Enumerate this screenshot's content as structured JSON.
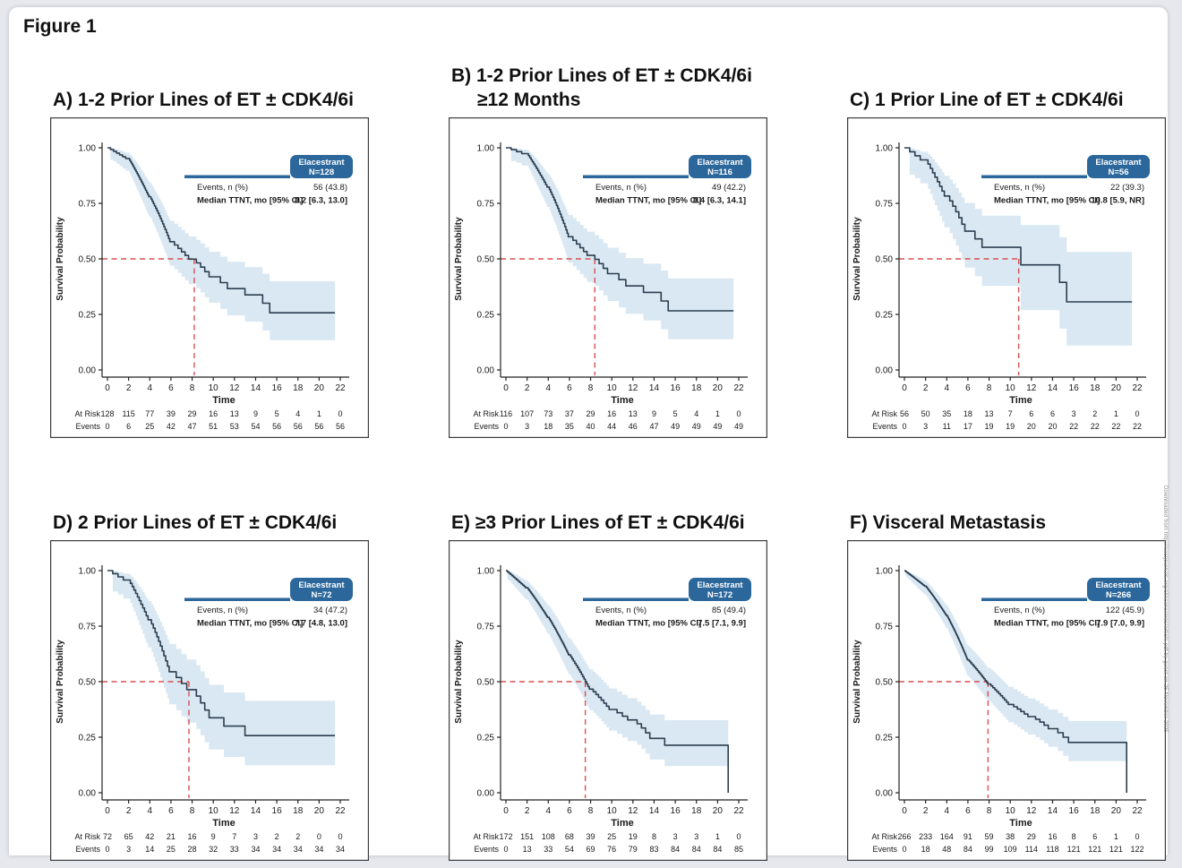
{
  "page": {
    "figure_label": "Figure 1",
    "side_note": "Downloaded from http://aacrjournals.org/clincancerres/article-pdf by guest on 25 November 2025"
  },
  "colors": {
    "legend_blue": "#2b679b",
    "curve": "#2c3e50",
    "band": "#d9e8f2",
    "median_red": "#d95050",
    "axis": "#222222",
    "text": "#1a1a1a"
  },
  "chart_data": {
    "type": "line",
    "subtype": "kaplan-meier-step",
    "title": "Figure 1",
    "xlabel": "Time",
    "ylabel": "Survival Probability",
    "x_ticks": [
      0,
      2,
      4,
      6,
      8,
      10,
      12,
      14,
      16,
      18,
      20,
      22
    ],
    "y_tick_labels": [
      "1.00",
      "0.75",
      "0.50",
      "0.25",
      "0.00"
    ],
    "y_ticks": [
      1.0,
      0.75,
      0.5,
      0.25,
      0.0
    ],
    "ylim": [
      0,
      1
    ],
    "xlim": [
      0,
      22
    ],
    "grid": false,
    "legend_position": "upper-right",
    "median_crosshair_probability": 0.5,
    "risk_table_row_labels": [
      "At Risk",
      "Events"
    ],
    "panels": [
      {
        "id": "A",
        "title": "A) 1-2 Prior Lines of ET ± CDK4/6i",
        "title_line2": "",
        "legend_title": "Elacestrant",
        "legend_n": "N=128",
        "events_label": "Events, n (%)",
        "events_value": "56 (43.8)",
        "median_label": "Median TTNT, mo [95% CI]",
        "median_value": "8.2 [6.3, 13.0]",
        "median_months": 8.2,
        "at_risk": [
          128,
          115,
          77,
          39,
          29,
          16,
          13,
          9,
          5,
          4,
          1,
          0
        ],
        "cumulative_events": [
          0,
          6,
          25,
          42,
          47,
          51,
          53,
          54,
          56,
          56,
          56,
          56
        ]
      },
      {
        "id": "B",
        "title": "B) 1-2 Prior Lines of ET ± CDK4/6i",
        "title_line2": "≥12 Months",
        "legend_title": "Elacestrant",
        "legend_n": "N=116",
        "events_label": "Events, n (%)",
        "events_value": "49 (42.2)",
        "median_label": "Median TTNT, mo [95% CI]",
        "median_value": "8.4 [6.3, 14.1]",
        "median_months": 8.4,
        "at_risk": [
          116,
          107,
          73,
          37,
          29,
          16,
          13,
          9,
          5,
          4,
          1,
          0
        ],
        "cumulative_events": [
          0,
          3,
          18,
          35,
          40,
          44,
          46,
          47,
          49,
          49,
          49,
          49
        ]
      },
      {
        "id": "C",
        "title": "C) 1 Prior Line of ET ± CDK4/6i",
        "title_line2": "",
        "legend_title": "Elacestrant",
        "legend_n": "N=56",
        "events_label": "Events, n (%)",
        "events_value": "22 (39.3)",
        "median_label": "Median TTNT, mo [95% CI]",
        "median_value": "10.8 [5.9, NR]",
        "median_months": 10.8,
        "at_risk": [
          56,
          50,
          35,
          18,
          13,
          7,
          6,
          6,
          3,
          2,
          1,
          0
        ],
        "cumulative_events": [
          0,
          3,
          11,
          17,
          19,
          19,
          20,
          20,
          22,
          22,
          22,
          22
        ]
      },
      {
        "id": "D",
        "title": "D) 2 Prior Lines of ET ± CDK4/6i",
        "title_line2": "",
        "legend_title": "Elacestrant",
        "legend_n": "N=72",
        "events_label": "Events, n (%)",
        "events_value": "34 (47.2)",
        "median_label": "Median TTNT, mo [95% CI]",
        "median_value": "7.7 [4.8, 13.0]",
        "median_months": 7.7,
        "at_risk": [
          72,
          65,
          42,
          21,
          16,
          9,
          7,
          3,
          2,
          2,
          0,
          0
        ],
        "cumulative_events": [
          0,
          3,
          14,
          25,
          28,
          32,
          33,
          34,
          34,
          34,
          34,
          34
        ]
      },
      {
        "id": "E",
        "title": "E) ≥3 Prior Lines of ET ± CDK4/6i",
        "title_line2": "",
        "legend_title": "Elacestrant",
        "legend_n": "N=172",
        "events_label": "Events, n (%)",
        "events_value": "85 (49.4)",
        "median_label": "Median TTNT, mo [95% CI]",
        "median_value": "7.5 [7.1, 9.9]",
        "median_months": 7.5,
        "at_risk": [
          172,
          151,
          108,
          68,
          39,
          25,
          19,
          8,
          3,
          3,
          1,
          0
        ],
        "cumulative_events": [
          0,
          13,
          33,
          54,
          69,
          76,
          79,
          83,
          84,
          84,
          84,
          85
        ]
      },
      {
        "id": "F",
        "title": "F) Visceral Metastasis",
        "title_line2": "",
        "legend_title": "Elacestrant",
        "legend_n": "N=266",
        "events_label": "Events, n (%)",
        "events_value": "122 (45.9)",
        "median_label": "Median TTNT, mo [95% CI]",
        "median_value": "7.9 [7.0, 9.9]",
        "median_months": 7.9,
        "at_risk": [
          266,
          233,
          164,
          91,
          59,
          38,
          29,
          16,
          8,
          6,
          1,
          0
        ],
        "cumulative_events": [
          0,
          18,
          48,
          84,
          99,
          109,
          114,
          118,
          121,
          121,
          121,
          122
        ]
      }
    ]
  }
}
